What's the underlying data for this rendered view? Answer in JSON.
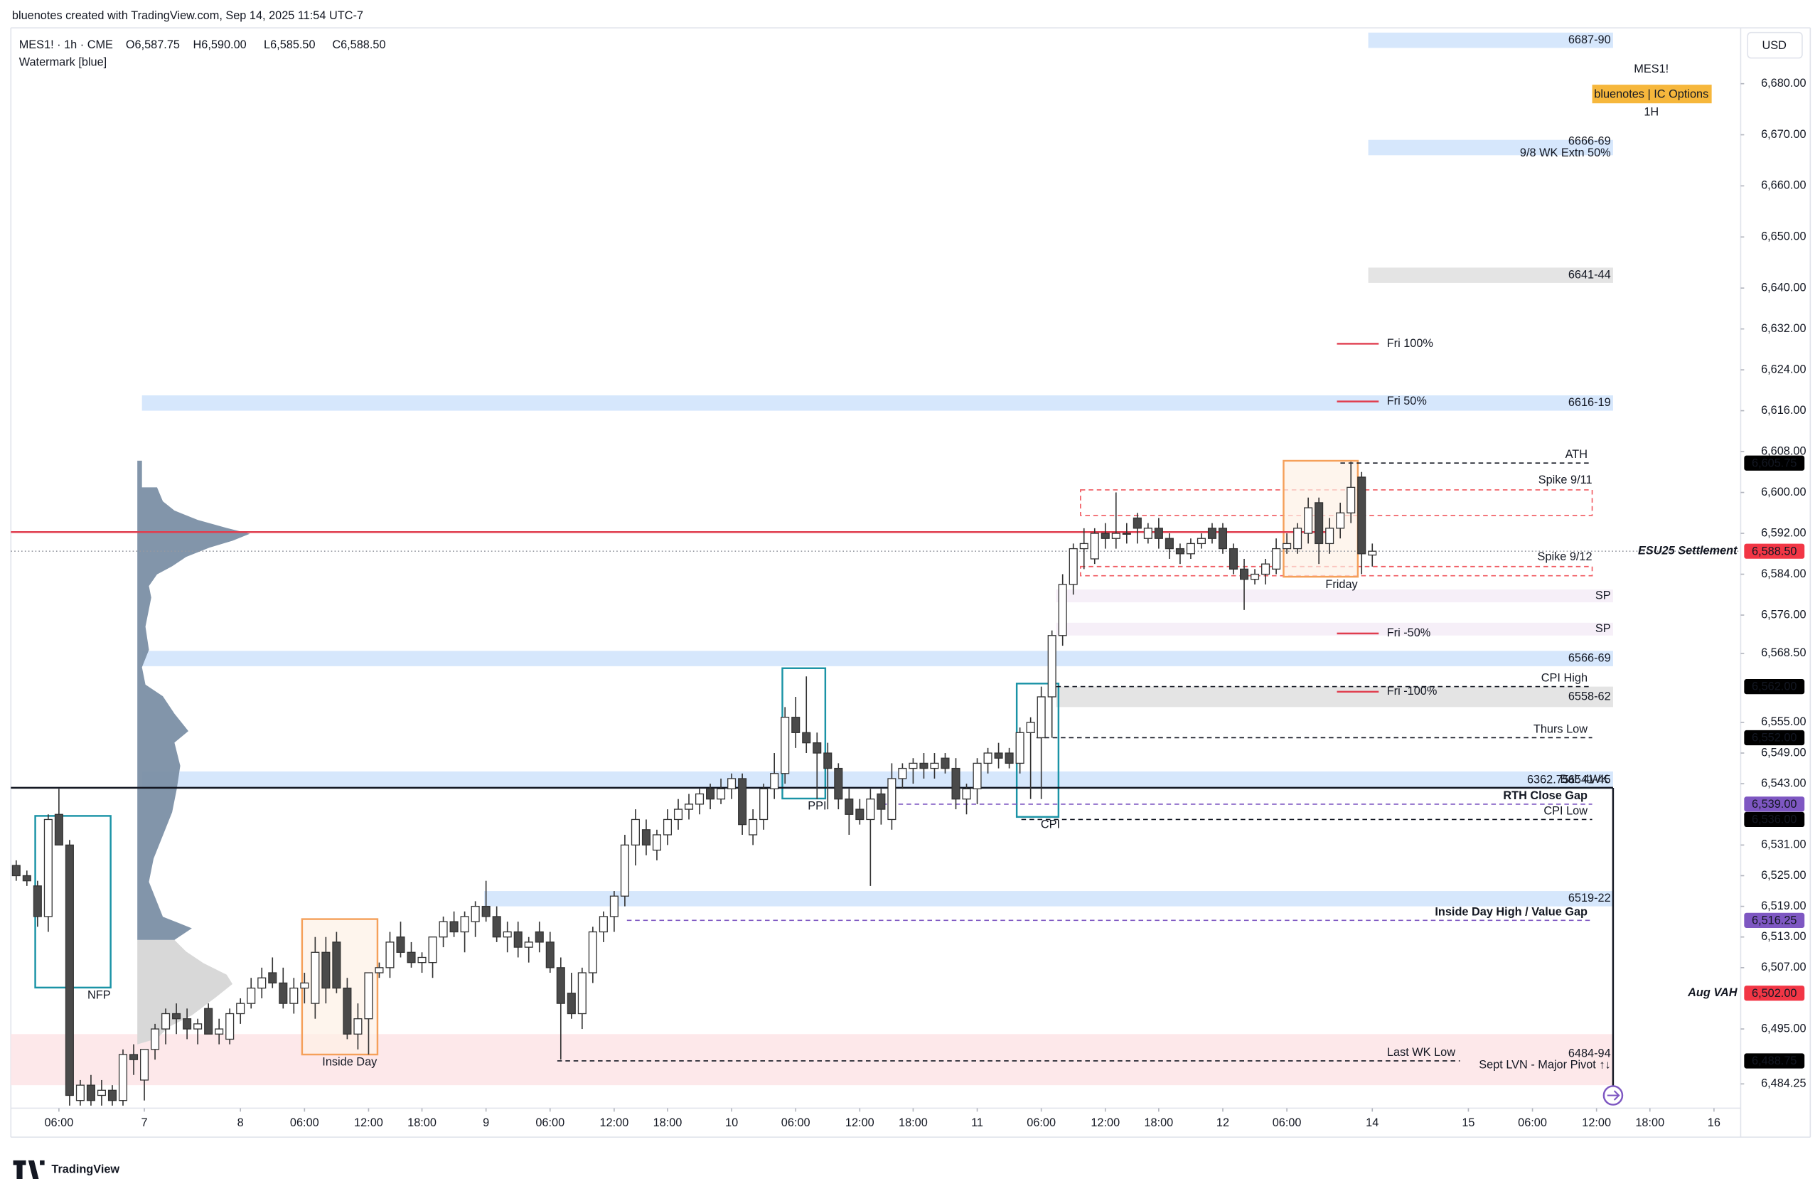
{
  "chart_data": {
    "type": "candlestick",
    "title": "bluenotes created with TradingView.com, Sep 14, 2025 11:54 UTC-7",
    "symbol": "MES1! · 1h · CME",
    "ohlc_labels": [
      "O6,587.75",
      "H6,590.00",
      "L6,585.50",
      "C6,588.50"
    ],
    "subtitle": "Watermark [blue]",
    "watermark": {
      "symbol": "MES1!",
      "badge": "bluenotes | IC Options",
      "interval": "1H"
    },
    "currency": "USD",
    "brand": "TradingView",
    "ylim": [
      6479.5,
      6690.7
    ],
    "yticks": [
      {
        "value": 6680,
        "label": "6,680.00"
      },
      {
        "value": 6670,
        "label": "6,670.00"
      },
      {
        "value": 6660,
        "label": "6,660.00"
      },
      {
        "value": 6650,
        "label": "6,650.00"
      },
      {
        "value": 6640,
        "label": "6,640.00"
      },
      {
        "value": 6632,
        "label": "6,632.00"
      },
      {
        "value": 6624,
        "label": "6,624.00"
      },
      {
        "value": 6616,
        "label": "6,616.00"
      },
      {
        "value": 6608,
        "label": "6,608.00"
      },
      {
        "value": 6600,
        "label": "6,600.00"
      },
      {
        "value": 6592,
        "label": "6,592.00"
      },
      {
        "value": 6584,
        "label": "6,584.00"
      },
      {
        "value": 6576,
        "label": "6,576.00"
      },
      {
        "value": 6568.5,
        "label": "6,568.50"
      },
      {
        "value": 6555,
        "label": "6,555.00"
      },
      {
        "value": 6549,
        "label": "6,549.00"
      },
      {
        "value": 6543,
        "label": "6,543.00"
      },
      {
        "value": 6531,
        "label": "6,531.00"
      },
      {
        "value": 6525,
        "label": "6,525.00"
      },
      {
        "value": 6519,
        "label": "6,519.00"
      },
      {
        "value": 6513,
        "label": "6,513.00"
      },
      {
        "value": 6507,
        "label": "6,507.00"
      },
      {
        "value": 6495,
        "label": "6,495.00"
      },
      {
        "value": 6484.25,
        "label": "6,484.25"
      }
    ],
    "xlim": [
      -0.5,
      161.5
    ],
    "xticks": [
      {
        "value": 4,
        "label": "06:00"
      },
      {
        "value": 12,
        "label": "7"
      },
      {
        "value": 21,
        "label": "8"
      },
      {
        "value": 27,
        "label": "06:00"
      },
      {
        "value": 33,
        "label": "12:00"
      },
      {
        "value": 38,
        "label": "18:00"
      },
      {
        "value": 44,
        "label": "9"
      },
      {
        "value": 50,
        "label": "06:00"
      },
      {
        "value": 56,
        "label": "12:00"
      },
      {
        "value": 61,
        "label": "18:00"
      },
      {
        "value": 67,
        "label": "10"
      },
      {
        "value": 73,
        "label": "06:00"
      },
      {
        "value": 79,
        "label": "12:00"
      },
      {
        "value": 84,
        "label": "18:00"
      },
      {
        "value": 90,
        "label": "11"
      },
      {
        "value": 96,
        "label": "06:00"
      },
      {
        "value": 102,
        "label": "12:00"
      },
      {
        "value": 107,
        "label": "18:00"
      },
      {
        "value": 113,
        "label": "12"
      },
      {
        "value": 119,
        "label": "06:00"
      },
      {
        "value": 127,
        "label": "14"
      },
      {
        "value": 136,
        "label": "15"
      },
      {
        "value": 142,
        "label": "06:00"
      },
      {
        "value": 148,
        "label": "12:00"
      },
      {
        "value": 153,
        "label": "18:00"
      },
      {
        "value": 159,
        "label": "16"
      }
    ],
    "up_color": "#ffffff",
    "down_color": "#4a4a4a",
    "open": [
      6527,
      6525,
      6523,
      6517,
      6537,
      6531,
      6481,
      6484,
      6482,
      6483,
      6481,
      6490,
      6485,
      6491,
      6495,
      6498,
      6497,
      6495,
      6499,
      6494,
      6493,
      6498,
      6500,
      6503,
      6506,
      6504,
      6500,
      6503,
      6500,
      6510,
      6512,
      6503,
      6494,
      6497,
      6506,
      6507,
      6513,
      6510,
      6508,
      6508,
      6513,
      6516,
      6514,
      6516,
      6519,
      6517,
      6513,
      6514,
      6511,
      6514,
      6512,
      6507,
      6502,
      6498,
      6506,
      6514,
      6517,
      6521,
      6531,
      6534,
      6530,
      6533,
      6536,
      6538,
      6539,
      6542,
      6540,
      6542,
      6544,
      6533,
      6536,
      6542,
      6545,
      6556,
      6553,
      6551,
      6549,
      6546,
      6540,
      6538,
      6536,
      6541,
      6536,
      6544,
      6546,
      6547,
      6546,
      6548,
      6546,
      6540,
      6542,
      6547,
      6549,
      6549,
      6547,
      6553,
      6552,
      6560,
      6572,
      6582,
      6589,
      6587,
      6592,
      6591,
      6592,
      6595,
      6591,
      6593,
      6591,
      6589,
      6588,
      6590,
      6593,
      6593,
      6589,
      6585,
      6583,
      6584,
      6585,
      6589,
      6589,
      6592,
      6598,
      6590,
      6593,
      6596,
      6603,
      6587.75
    ],
    "high": [
      6528,
      6526,
      6524,
      6537,
      6542,
      6532,
      6485,
      6486,
      6485,
      6484,
      6491,
      6492,
      6491,
      6496,
      6499,
      6500,
      6499,
      6497,
      6500,
      6497,
      6499,
      6501,
      6505,
      6507,
      6509,
      6507,
      6505,
      6506,
      6513,
      6513,
      6514,
      6505,
      6500,
      6506,
      6508,
      6514,
      6516,
      6512,
      6510,
      6513,
      6517,
      6518,
      6518,
      6520,
      6524,
      6519,
      6516,
      6516,
      6513,
      6516,
      6514,
      6509,
      6506,
      6507,
      6515,
      6518,
      6522,
      6533,
      6538,
      6536,
      6534,
      6538,
      6540,
      6541,
      6542,
      6543,
      6544,
      6545,
      6545,
      6538,
      6543,
      6549,
      6558,
      6560,
      6564,
      6553,
      6551,
      6547,
      6542,
      6540,
      6542,
      6542,
      6547,
      6547,
      6548,
      6549,
      6549,
      6549,
      6548,
      6543,
      6548,
      6550,
      6551,
      6550,
      6554,
      6556,
      6562,
      6573,
      6584,
      6590,
      6593,
      6593,
      6594,
      6600,
      6594,
      6596,
      6594,
      6595,
      6592,
      6590,
      6591,
      6592,
      6594,
      6594,
      6590,
      6587,
      6585,
      6587,
      6591,
      6592,
      6594,
      6599,
      6599,
      6595,
      6598,
      6606,
      6604,
      6590
    ],
    "low": [
      6524,
      6523,
      6515,
      6514,
      6531,
      6480,
      6480,
      6480,
      6480,
      6480,
      6480,
      6486,
      6481,
      6489,
      6492,
      6494,
      6493,
      6492,
      6494,
      6492,
      6492,
      6496,
      6499,
      6501,
      6503,
      6499,
      6498,
      6500,
      6497,
      6500,
      6502,
      6493,
      6491,
      6490,
      6505,
      6505,
      6509,
      6507,
      6506,
      6505,
      6511,
      6513,
      6510,
      6513,
      6516,
      6512,
      6510,
      6509,
      6508,
      6510,
      6506,
      6489,
      6497,
      6495,
      6504,
      6512,
      6514,
      6519,
      6527,
      6529,
      6528,
      6531,
      6534,
      6536,
      6537,
      6538,
      6539,
      6540,
      6533,
      6531,
      6534,
      6540,
      6543,
      6550,
      6549,
      6540,
      6538,
      6538,
      6533,
      6535,
      6523,
      6535,
      6534,
      6542,
      6543,
      6544,
      6544,
      6545,
      6538,
      6537,
      6539,
      6545,
      6546,
      6546,
      6545,
      6540,
      6540,
      6552,
      6570,
      6580,
      6585,
      6586,
      6589,
      6589,
      6590,
      6590,
      6590,
      6589,
      6587,
      6586,
      6587,
      6589,
      6590,
      6588,
      6584,
      6577,
      6582,
      6582,
      6584,
      6588,
      6588,
      6590,
      6586,
      6588,
      6591,
      6594,
      6584,
      6585.5
    ],
    "close": [
      6525,
      6524,
      6517,
      6536,
      6531,
      6482,
      6484,
      6481,
      6483,
      6481,
      6490,
      6489,
      6491,
      6495,
      6498,
      6497,
      6495,
      6496,
      6494,
      6495,
      6498,
      6500,
      6503,
      6505,
      6504,
      6500,
      6503,
      6504,
      6510,
      6503,
      6503,
      6494,
      6497,
      6506,
      6507,
      6512,
      6510,
      6508,
      6509,
      6513,
      6516,
      6514,
      6517,
      6519,
      6517,
      6513,
      6514,
      6511,
      6512,
      6512,
      6507,
      6500,
      6498,
      6506,
      6514,
      6517,
      6521,
      6531,
      6536,
      6531,
      6533,
      6536,
      6538,
      6539,
      6541,
      6540,
      6542,
      6544,
      6535,
      6536,
      6542,
      6545,
      6556,
      6553,
      6551,
      6549,
      6546,
      6540,
      6537,
      6536,
      6540,
      6538,
      6544,
      6546,
      6547,
      6546,
      6547,
      6546,
      6540,
      6542,
      6547,
      6549,
      6548,
      6547,
      6553,
      6555,
      6560,
      6572,
      6582,
      6589,
      6590,
      6592,
      6591,
      6592,
      6592,
      6593,
      6593,
      6591,
      6589,
      6588,
      6590,
      6591,
      6591,
      6589,
      6585,
      6583,
      6584,
      6586,
      6589,
      6590,
      6593,
      6597,
      6590,
      6593,
      6596,
      6601,
      6588,
      6588.5
    ],
    "zones": [
      {
        "label": "6687-90",
        "low": 6687,
        "high": 6690,
        "color": "#d6e7fc",
        "text_color": "#5f96e0"
      },
      {
        "label": "6666-69",
        "note": "9/8 WK Extn 50%",
        "low": 6666,
        "high": 6669,
        "color": "#d6e7fc",
        "text_color": "#5f96e0"
      },
      {
        "label": "6641-44",
        "low": 6641,
        "high": 6644,
        "color": "#e4e4e4",
        "text_color": "#6b6b6b"
      },
      {
        "label": "6616-19",
        "low": 6616,
        "high": 6619,
        "color": "#d6e7fc",
        "text_color": "#5f96e0"
      },
      {
        "label": "6566-69",
        "low": 6566,
        "high": 6569,
        "color": "#d6e7fc",
        "text_color": "#5f96e0"
      },
      {
        "label": "6558-62",
        "low": 6558,
        "high": 6562,
        "color": "#e4e4e4",
        "text_color": "#6b6b6b"
      },
      {
        "label": "6541-45",
        "note": "6362.75",
        "low": 6542,
        "high": 6545.4,
        "color": "#d6e7fc",
        "text_color": "#5f96e0"
      },
      {
        "label": "6519-22",
        "low": 6519,
        "high": 6522,
        "color": "#d6e7fc",
        "text_color": "#5f96e0"
      },
      {
        "label": "6484-94",
        "note": "Sept LVN - Major Pivot ↑↓",
        "low": 6484,
        "high": 6494,
        "color": "#fde8ea",
        "text_color": "#e03d4e"
      },
      {
        "label": "SP",
        "low": 6578.5,
        "high": 6581,
        "color": "#f6eff8",
        "text_color": "#a06cc8"
      },
      {
        "label": "SP",
        "low": 6572,
        "high": 6574.5,
        "color": "#f6eff8",
        "text_color": "#a06cc8"
      }
    ],
    "spike_boxes": [
      {
        "name": "Spike 9/11",
        "low": 6595.5,
        "high": 6600.5,
        "color": "#f0585f"
      },
      {
        "name": "Spike 9/12",
        "low": 6583.7,
        "high": 6585.5,
        "color": "#f0585f"
      }
    ],
    "levels": [
      {
        "name": "Fri 100%",
        "value": 6629.1,
        "color": "#e03d4e",
        "style": "solid"
      },
      {
        "name": "Fri 50%",
        "value": 6617.8,
        "color": "#e03d4e",
        "style": "solid"
      },
      {
        "name": "ATH",
        "value": 6605.75,
        "value_label": "6,605.75",
        "color": "#131722",
        "style": "dashed"
      },
      {
        "value": 6592.25,
        "color": "#e03d4e",
        "style": "solid"
      },
      {
        "name": "ESU25 Settlement",
        "value": 6588.5,
        "value_label": "6,588.50",
        "color": "#f23645",
        "style": "dotted"
      },
      {
        "name": "Fri -50%",
        "value": 6572.4,
        "color": "#e03d4e",
        "style": "solid"
      },
      {
        "name": "CPI High",
        "value": 6562,
        "value_label": "6,562.00",
        "color": "#131722",
        "style": "dashed"
      },
      {
        "name": "Fri -100%",
        "value": 6561,
        "color": "#e03d4e",
        "style": "solid"
      },
      {
        "name": "Thurs Low",
        "value": 6552,
        "value_label": "6,552.00",
        "color": "#131722",
        "style": "dashed"
      },
      {
        "name": "Bal: 4WK",
        "value": 6542.2,
        "color": "#131722",
        "style": "solid"
      },
      {
        "name": "RTH Close Gap",
        "value": 6539,
        "value_label": "6,539.00",
        "color": "#7e57c2",
        "style": "dashed"
      },
      {
        "name": "CPI Low",
        "value": 6536,
        "value_label": "6,536.00",
        "color": "#131722",
        "style": "dashed"
      },
      {
        "name": "Inside Day High / Value Gap",
        "value": 6516.25,
        "value_label": "6,516.25",
        "color": "#7e57c2",
        "style": "dashed"
      },
      {
        "name": "Aug VAH",
        "value": 6502,
        "value_label": "6,502.00",
        "color": "#f23645",
        "style": "none"
      },
      {
        "name": "Last WK Low",
        "value": 6488.75,
        "value_label": "6,488.75",
        "color": "#131722",
        "style": "dashed"
      }
    ],
    "boxes": [
      {
        "label": "NFP",
        "low": 6503.1,
        "high": 6536.7,
        "color": "#1a93a6",
        "fill": "none"
      },
      {
        "label": "Inside Day",
        "low": 6490,
        "high": 6516.5,
        "color": "#f5a05a",
        "fill": "#fdf1e6"
      },
      {
        "label": "PPI",
        "low": 6540.1,
        "high": 6565.6,
        "color": "#1a93a6",
        "fill": "none"
      },
      {
        "label": "CPI",
        "low": 6536.5,
        "high": 6562.6,
        "color": "#1a93a6",
        "fill": "none"
      },
      {
        "label": "Friday",
        "low": 6583.5,
        "high": 6606.2,
        "color": "#f5a05a",
        "fill": "#fdf1e6"
      }
    ]
  }
}
